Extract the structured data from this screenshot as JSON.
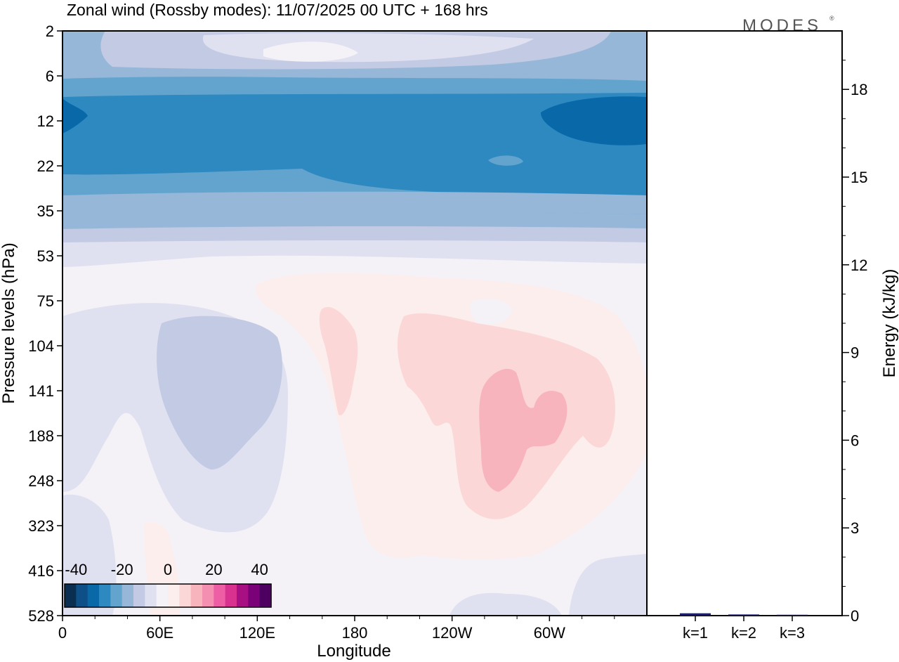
{
  "chart_data": [
    {
      "type": "heatmap",
      "title": "Zonal wind (Rossby modes):  11/07/2025  00 UTC  + 168 hrs",
      "xlabel": "Longitude",
      "ylabel": "Pressure levels (hPa)",
      "x_tick_labels": [
        "0",
        "60E",
        "120E",
        "180",
        "120W",
        "60W"
      ],
      "x_range_deg_east": [
        0,
        360
      ],
      "y_tick_labels": [
        "2",
        "6",
        "12",
        "22",
        "35",
        "53",
        "75",
        "104",
        "141",
        "188",
        "248",
        "323",
        "416",
        "528"
      ],
      "colorbar": {
        "tick_labels": [
          "-40",
          "-20",
          "0",
          "20",
          "40"
        ],
        "levels": [
          -40,
          -35,
          -30,
          -25,
          -20,
          -15,
          -10,
          -5,
          0,
          5,
          10,
          15,
          20,
          25,
          30,
          35,
          40
        ],
        "colors": [
          "#0a2e4f",
          "#0d4f86",
          "#0868a8",
          "#2e89c1",
          "#63a4cf",
          "#97b7d9",
          "#c3cae4",
          "#e0e1f0",
          "#f4f1f7",
          "#fdeeee",
          "#fbd7d8",
          "#f8b4bc",
          "#f58fb2",
          "#ee5ea4",
          "#d9318f",
          "#a80f82",
          "#7a0177",
          "#4d0060"
        ]
      },
      "grid": false,
      "colorbar_position": "bottom-left inset",
      "note_zonal_mean_structure": [
        {
          "level": 2,
          "value": -12
        },
        {
          "level": 6,
          "value": -22
        },
        {
          "level": 12,
          "value": -30
        },
        {
          "level": 22,
          "value": -28
        },
        {
          "level": 35,
          "value": -18
        },
        {
          "level": 53,
          "value": -8
        },
        {
          "level": 75,
          "value": 0
        },
        {
          "level": 104,
          "value": 2
        },
        {
          "level": 141,
          "value": 4
        },
        {
          "level": 188,
          "value": 3
        },
        {
          "level": 248,
          "value": 2
        },
        {
          "level": 323,
          "value": 1
        },
        {
          "level": 416,
          "value": 0
        },
        {
          "level": 528,
          "value": 0
        }
      ]
    },
    {
      "type": "bar",
      "ylabel": "Energy (kJ/kg)",
      "categories": [
        "k=1",
        "k=2",
        "k=3"
      ],
      "values": [
        0.08,
        0.04,
        0.03
      ],
      "ylim": [
        0,
        20
      ],
      "y_tick_labels": [
        "0",
        "3",
        "6",
        "9",
        "12",
        "15",
        "18"
      ],
      "bar_color": "#1a1a7a"
    }
  ],
  "logo": {
    "text": "MODES",
    "mark": "®"
  }
}
